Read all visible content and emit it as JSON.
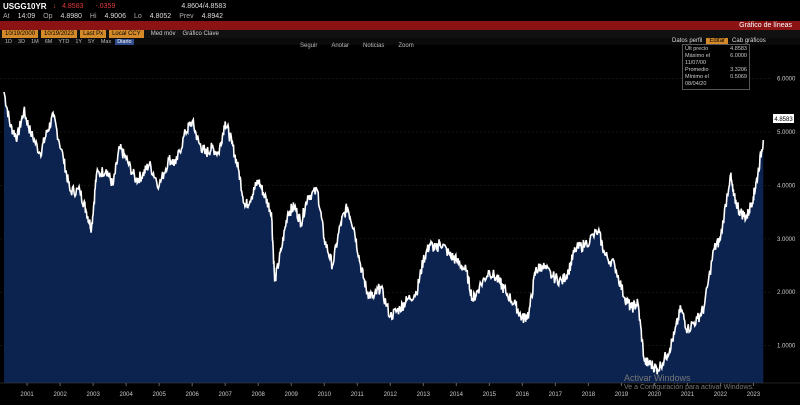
{
  "header": {
    "ticker": "USGG10YR",
    "arrow": "↓",
    "last": "4.8583",
    "change": "-.0359",
    "bid_ask": "4.8604/4.8583",
    "time_label": "At",
    "time": "14:09",
    "open_label": "Op",
    "open": "4.8980",
    "high_label": "Hi",
    "high": "4.9006",
    "low_label": "Lo",
    "low": "4.8052",
    "prev_label": "Prev",
    "prev": "4.8942"
  },
  "bar": {
    "title": "Gráfico de líneas"
  },
  "options": {
    "box1": "10/19/2000",
    "box2": "10/19/2023",
    "box3": "Last Px",
    "box4": "Local CCY",
    "link1": "Med móv",
    "link2": "Gráfico Clave"
  },
  "periods": [
    "1D",
    "3D",
    "1M",
    "6M",
    "YTD",
    "1Y",
    "5Y",
    "Max",
    "Diario"
  ],
  "tools": [
    "Seguir",
    "Anotar",
    "Noticias",
    "Zoom"
  ],
  "right_tools": {
    "datos": "Datos perfil",
    "edit": "Editar",
    "cab": "Cab gráficos"
  },
  "legend": [
    {
      "label": "Últ precio",
      "value": "4.8583"
    },
    {
      "label": "Máximo el 11/07/00",
      "value": "6.0000"
    },
    {
      "label": "Promedio",
      "value": "3.3206"
    },
    {
      "label": "Mínimo el 08/04/20",
      "value": "0.5069"
    }
  ],
  "watermark": {
    "line1": "Activar Windows",
    "line2": "Ve a Configuración para activar Windows."
  },
  "chart_data": {
    "type": "area",
    "x_labels": [
      "2001",
      "2002",
      "2003",
      "2004",
      "2005",
      "2006",
      "2007",
      "2008",
      "2009",
      "2010",
      "2011",
      "2012",
      "2013",
      "2014",
      "2015",
      "2016",
      "2017",
      "2018",
      "2019",
      "2020",
      "2021",
      "2022",
      "2023"
    ],
    "y_tick_labels": [
      "1.0000",
      "2.0000",
      "3.0000",
      "4.0000",
      "5.0000",
      "6.0000"
    ],
    "last_value_label": "4.8583",
    "ylim": [
      0.3,
      6.2
    ],
    "points": [
      [
        2000.8,
        5.75
      ],
      [
        2001.0,
        5.1
      ],
      [
        2001.2,
        4.9
      ],
      [
        2001.4,
        5.4
      ],
      [
        2001.6,
        5.0
      ],
      [
        2001.9,
        4.6
      ],
      [
        2002.1,
        5.0
      ],
      [
        2002.3,
        5.3
      ],
      [
        2002.6,
        4.5
      ],
      [
        2002.8,
        3.9
      ],
      [
        2003.1,
        3.9
      ],
      [
        2003.3,
        3.5
      ],
      [
        2003.45,
        3.2
      ],
      [
        2003.6,
        4.2
      ],
      [
        2003.9,
        4.3
      ],
      [
        2004.1,
        4.0
      ],
      [
        2004.3,
        4.7
      ],
      [
        2004.5,
        4.5
      ],
      [
        2004.8,
        4.1
      ],
      [
        2005.0,
        4.2
      ],
      [
        2005.2,
        4.4
      ],
      [
        2005.5,
        4.0
      ],
      [
        2005.8,
        4.5
      ],
      [
        2006.0,
        4.4
      ],
      [
        2006.3,
        5.0
      ],
      [
        2006.5,
        5.2
      ],
      [
        2006.7,
        4.8
      ],
      [
        2006.9,
        4.6
      ],
      [
        2007.1,
        4.7
      ],
      [
        2007.3,
        4.6
      ],
      [
        2007.5,
        5.2
      ],
      [
        2007.7,
        4.8
      ],
      [
        2007.9,
        4.3
      ],
      [
        2008.1,
        3.6
      ],
      [
        2008.3,
        3.8
      ],
      [
        2008.5,
        4.1
      ],
      [
        2008.7,
        3.8
      ],
      [
        2008.9,
        3.5
      ],
      [
        2009.0,
        2.2
      ],
      [
        2009.2,
        2.8
      ],
      [
        2009.4,
        3.5
      ],
      [
        2009.6,
        3.6
      ],
      [
        2009.8,
        3.3
      ],
      [
        2010.0,
        3.8
      ],
      [
        2010.3,
        3.9
      ],
      [
        2010.5,
        3.0
      ],
      [
        2010.75,
        2.5
      ],
      [
        2011.0,
        3.3
      ],
      [
        2011.2,
        3.6
      ],
      [
        2011.4,
        3.2
      ],
      [
        2011.6,
        2.5
      ],
      [
        2011.8,
        2.0
      ],
      [
        2012.0,
        1.9
      ],
      [
        2012.2,
        2.1
      ],
      [
        2012.5,
        1.55
      ],
      [
        2012.8,
        1.7
      ],
      [
        2013.0,
        1.85
      ],
      [
        2013.3,
        2.0
      ],
      [
        2013.5,
        2.6
      ],
      [
        2013.7,
        2.9
      ],
      [
        2013.9,
        2.8
      ],
      [
        2014.0,
        2.95
      ],
      [
        2014.3,
        2.7
      ],
      [
        2014.5,
        2.6
      ],
      [
        2014.8,
        2.4
      ],
      [
        2015.0,
        1.85
      ],
      [
        2015.2,
        2.1
      ],
      [
        2015.5,
        2.4
      ],
      [
        2015.8,
        2.2
      ],
      [
        2016.0,
        2.0
      ],
      [
        2016.3,
        1.75
      ],
      [
        2016.5,
        1.5
      ],
      [
        2016.7,
        1.6
      ],
      [
        2016.9,
        2.4
      ],
      [
        2017.1,
        2.5
      ],
      [
        2017.4,
        2.3
      ],
      [
        2017.7,
        2.2
      ],
      [
        2017.9,
        2.4
      ],
      [
        2018.1,
        2.8
      ],
      [
        2018.4,
        2.9
      ],
      [
        2018.8,
        3.15
      ],
      [
        2019.0,
        2.7
      ],
      [
        2019.3,
        2.5
      ],
      [
        2019.6,
        1.9
      ],
      [
        2019.8,
        1.7
      ],
      [
        2020.0,
        1.8
      ],
      [
        2020.2,
        0.7
      ],
      [
        2020.4,
        0.65
      ],
      [
        2020.6,
        0.55
      ],
      [
        2020.9,
        0.85
      ],
      [
        2021.1,
        1.2
      ],
      [
        2021.3,
        1.7
      ],
      [
        2021.5,
        1.3
      ],
      [
        2021.8,
        1.5
      ],
      [
        2022.0,
        1.7
      ],
      [
        2022.3,
        2.8
      ],
      [
        2022.5,
        3.0
      ],
      [
        2022.8,
        4.2
      ],
      [
        2022.9,
        3.8
      ],
      [
        2023.1,
        3.5
      ],
      [
        2023.3,
        3.4
      ],
      [
        2023.5,
        3.8
      ],
      [
        2023.6,
        4.1
      ],
      [
        2023.8,
        4.85
      ]
    ]
  }
}
